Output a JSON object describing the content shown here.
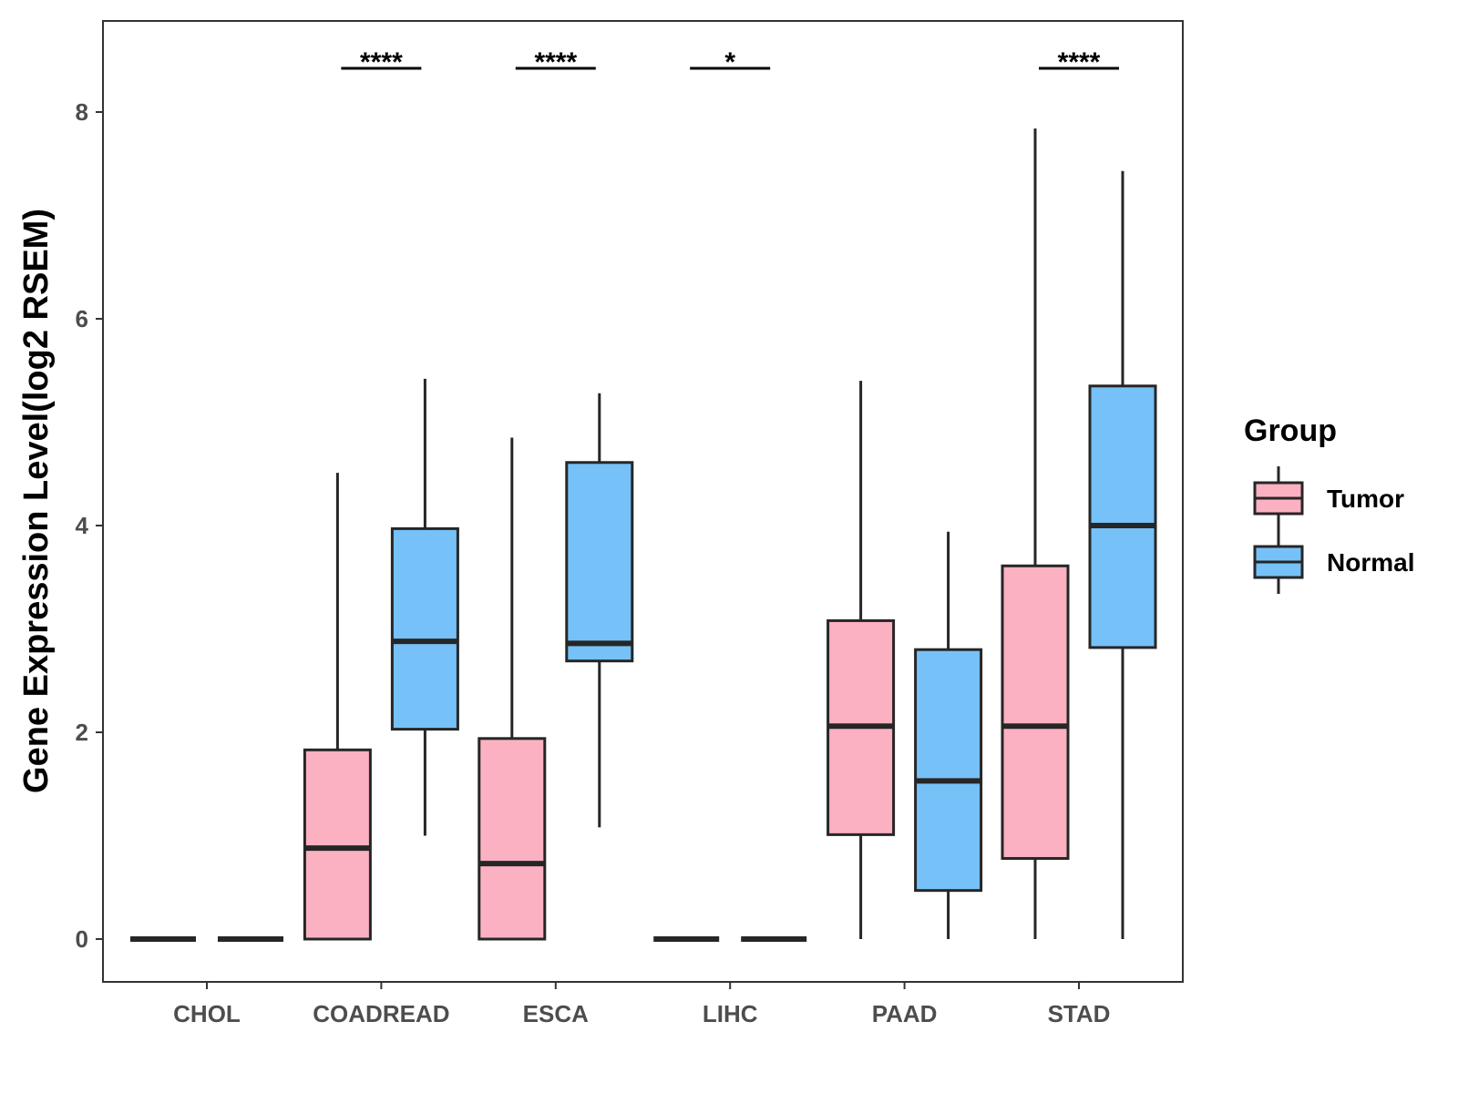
{
  "chart_data": {
    "type": "boxplot",
    "title": "",
    "xlabel": "",
    "ylabel": "Gene Expression Level(log2 RSEM)",
    "ylim": [
      -0.4,
      8.8
    ],
    "yticks": [
      0,
      2,
      4,
      6,
      8
    ],
    "categories": [
      "CHOL",
      "COADREAD",
      "ESCA",
      "LIHC",
      "PAAD",
      "STAD"
    ],
    "legend": {
      "title": "Group",
      "position": "right"
    },
    "series": [
      {
        "name": "Tumor",
        "color": "#FBB1C1",
        "boxes": [
          {
            "min": 0,
            "q1": 0,
            "median": 0,
            "q3": 0,
            "max": 0
          },
          {
            "min": 0,
            "q1": 0,
            "median": 0.88,
            "q3": 1.83,
            "max": 4.51
          },
          {
            "min": 0,
            "q1": 0,
            "median": 0.73,
            "q3": 1.94,
            "max": 4.85
          },
          {
            "min": 0,
            "q1": 0,
            "median": 0,
            "q3": 0,
            "max": 0
          },
          {
            "min": 0,
            "q1": 1.01,
            "median": 2.06,
            "q3": 3.08,
            "max": 5.4
          },
          {
            "min": 0,
            "q1": 0.78,
            "median": 2.06,
            "q3": 3.61,
            "max": 7.84
          }
        ]
      },
      {
        "name": "Normal",
        "color": "#76C1F7",
        "boxes": [
          {
            "min": 0,
            "q1": 0,
            "median": 0,
            "q3": 0,
            "max": 0
          },
          {
            "min": 1.0,
            "q1": 2.03,
            "median": 2.88,
            "q3": 3.97,
            "max": 5.42
          },
          {
            "min": 1.08,
            "q1": 2.69,
            "median": 2.86,
            "q3": 4.61,
            "max": 5.28
          },
          {
            "min": 0,
            "q1": 0,
            "median": 0,
            "q3": 0,
            "max": 0
          },
          {
            "min": 0,
            "q1": 0.47,
            "median": 1.53,
            "q3": 2.8,
            "max": 3.94
          },
          {
            "min": 0,
            "q1": 2.82,
            "median": 4.0,
            "q3": 5.35,
            "max": 7.43
          }
        ]
      }
    ],
    "significance": [
      {
        "category": "CHOL",
        "label": ""
      },
      {
        "category": "COADREAD",
        "label": "****"
      },
      {
        "category": "ESCA",
        "label": "****"
      },
      {
        "category": "LIHC",
        "label": "*"
      },
      {
        "category": "PAAD",
        "label": ""
      },
      {
        "category": "STAD",
        "label": "****"
      }
    ]
  }
}
